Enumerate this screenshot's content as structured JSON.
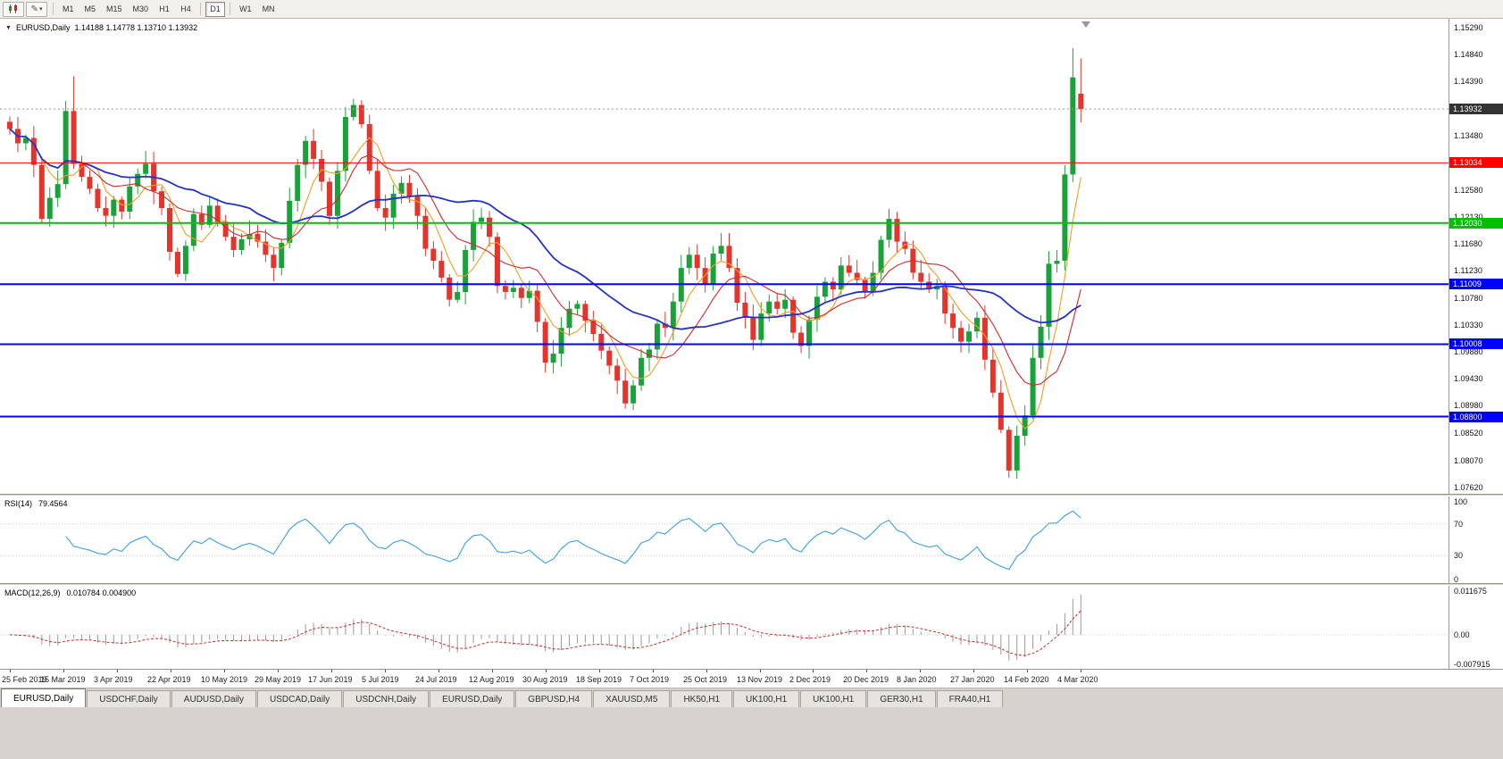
{
  "toolbar": {
    "timeframes": [
      "M1",
      "M5",
      "M15",
      "M30",
      "H1",
      "H4",
      "D1",
      "W1",
      "MN"
    ],
    "active_timeframe": "D1"
  },
  "chart": {
    "symbol": "EURUSD,Daily",
    "ohlc": "1.14188 1.14778 1.13710 1.13932",
    "current_price": {
      "label": "1.13932",
      "value": 1.13932
    },
    "axis_labels": [
      "1.15290",
      "1.14840",
      "1.14390",
      "1.13480",
      "1.12580",
      "1.12130",
      "1.11680",
      "1.11230",
      "1.10780",
      "1.10330",
      "1.09880",
      "1.09430",
      "1.08980",
      "1.08520",
      "1.08070",
      "1.07620"
    ],
    "levels": [
      {
        "label": "1.13034",
        "value": 1.13034,
        "color": "#ff0000",
        "width": 1
      },
      {
        "label": "1.12030",
        "value": 1.1203,
        "color": "#00c000",
        "width": 2
      },
      {
        "label": "1.11009",
        "value": 1.11009,
        "color": "#0000ff",
        "width": 2
      },
      {
        "label": "1.10008",
        "value": 1.10008,
        "color": "#0000ff",
        "width": 2
      },
      {
        "label": "1.08800",
        "value": 1.088,
        "color": "#0000ff",
        "width": 2
      }
    ]
  },
  "chart_data": {
    "type": "candlestick",
    "symbol": "EURUSD",
    "timeframe": "Daily",
    "first_open": 1.1372,
    "closes": [
      1.136,
      1.1336,
      1.1345,
      1.13,
      1.121,
      1.1245,
      1.1268,
      1.139,
      1.1302,
      1.128,
      1.126,
      1.1228,
      1.1215,
      1.1242,
      1.1222,
      1.1264,
      1.1285,
      1.1302,
      1.1256,
      1.1228,
      1.1155,
      1.1118,
      1.1165,
      1.1218,
      1.12,
      1.1232,
      1.1205,
      1.118,
      1.1158,
      1.1176,
      1.1185,
      1.1172,
      1.115,
      1.1128,
      1.117,
      1.124,
      1.13,
      1.134,
      1.131,
      1.1272,
      1.1215,
      1.129,
      1.138,
      1.14,
      1.1368,
      1.129,
      1.1228,
      1.1212,
      1.1252,
      1.127,
      1.1248,
      1.1215,
      1.116,
      1.114,
      1.1112,
      1.1075,
      1.1088,
      1.1158,
      1.1205,
      1.1212,
      1.118,
      1.1098,
      1.1088,
      1.1095,
      1.1078,
      1.109,
      1.1038,
      1.097,
      1.0985,
      1.1028,
      1.106,
      1.1068,
      1.104,
      1.1018,
      1.099,
      1.0965,
      1.094,
      1.0902,
      1.0932,
      1.0978,
      1.0992,
      1.1035,
      1.1028,
      1.1072,
      1.1128,
      1.115,
      1.1128,
      1.1102,
      1.1152,
      1.1165,
      1.1128,
      1.107,
      1.1045,
      1.1008,
      1.1052,
      1.1072,
      1.106,
      1.1075,
      1.102,
      1.0998,
      1.1042,
      1.108,
      1.1105,
      1.1092,
      1.1132,
      1.112,
      1.1108,
      1.1088,
      1.112,
      1.1175,
      1.121,
      1.1172,
      1.116,
      1.112,
      1.1105,
      1.1092,
      1.1098,
      1.1052,
      1.1028,
      1.1005,
      1.1022,
      1.1045,
      1.0975,
      1.092,
      1.0858,
      1.079,
      1.0848,
      1.0882,
      1.0978,
      1.103,
      1.1135,
      1.114,
      1.1284,
      1.1446,
      1.13932
    ],
    "overrides": {
      "8": {
        "h": 1.1448
      },
      "125": {
        "l": 1.0778
      },
      "133": {
        "h": 1.1495
      }
    },
    "last_candle": {
      "open": 1.14188,
      "high": 1.14778,
      "low": 1.1371,
      "close": 1.13932
    },
    "date_labels": [
      "25 Feb 2019",
      "15 Mar 2019",
      "3 Apr 2019",
      "22 Apr 2019",
      "10 May 2019",
      "29 May 2019",
      "17 Jun 2019",
      "5 Jul 2019",
      "24 Jul 2019",
      "12 Aug 2019",
      "30 Aug 2019",
      "18 Sep 2019",
      "7 Oct 2019",
      "25 Oct 2019",
      "13 Nov 2019",
      "2 Dec 2019",
      "20 Dec 2019",
      "8 Jan 2020",
      "27 Jan 2020",
      "14 Feb 2020",
      "4 Mar 2020"
    ],
    "y_axis_range": [
      1.0752,
      1.1544
    ],
    "moving_averages": [
      {
        "period": 5,
        "color": "#f59d22"
      },
      {
        "period": 10,
        "color": "#d02a2a"
      },
      {
        "period": 24,
        "color": "#2433c4"
      }
    ]
  },
  "rsi": {
    "name": "RSI(14)",
    "value": "79.4564",
    "axis": [
      100,
      70,
      30,
      0
    ],
    "dotted_levels": [
      70,
      30
    ],
    "color": "#3aa0e8"
  },
  "macd": {
    "name": "MACD(12,26,9)",
    "values": "0.010784 0.004900",
    "axis": [
      {
        "label": "0.011675",
        "value": 0.011675
      },
      {
        "label": "0.00",
        "value": 0
      },
      {
        "label": "-0.007915",
        "value": -0.007915
      }
    ],
    "hist_color": "#9a9a9a",
    "signal_color": "#d02a2a"
  },
  "tabs": [
    {
      "label": "EURUSD,Daily",
      "active": true
    },
    {
      "label": "USDCHF,Daily"
    },
    {
      "label": "AUDUSD,Daily"
    },
    {
      "label": "USDCAD,Daily"
    },
    {
      "label": "USDCNH,Daily"
    },
    {
      "label": "EURUSD,Daily"
    },
    {
      "label": "GBPUSD,H4"
    },
    {
      "label": "XAUUSD,M5"
    },
    {
      "label": "HK50,H1"
    },
    {
      "label": "UK100,H1"
    },
    {
      "label": "UK100,H1"
    },
    {
      "label": "GER30,H1"
    },
    {
      "label": "FRA40,H1"
    }
  ],
  "colors": {
    "up": "#1ba13a",
    "down": "#e3352c",
    "price_tag_bg": "#333333"
  }
}
